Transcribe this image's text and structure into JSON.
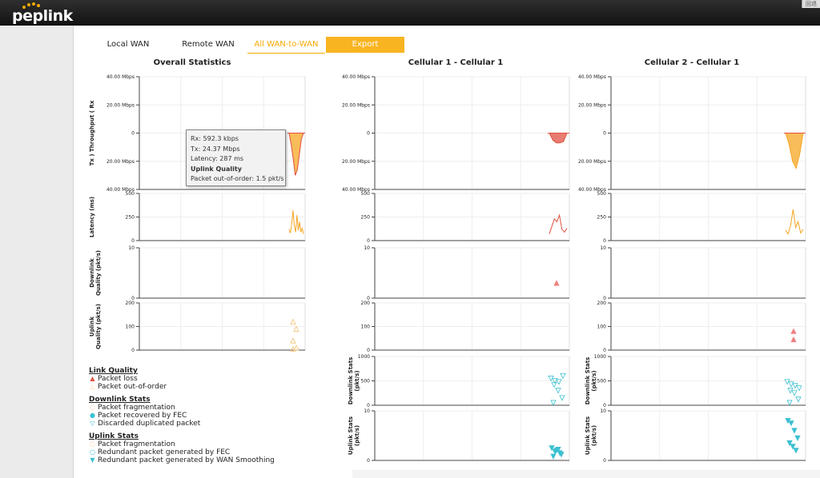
{
  "header": {
    "logo_text": "peplink",
    "corner_label": "回退"
  },
  "tabs": [
    {
      "label": "Local WAN",
      "active": false
    },
    {
      "label": "Remote WAN",
      "active": false
    },
    {
      "label": "All WAN-to-WAN",
      "active": true
    },
    {
      "label": "Export",
      "active": false
    }
  ],
  "tooltip": {
    "rx": "Rx: 592.3 kbps",
    "tx": "Tx: 24.37 Mbps",
    "latency": "Latency: 287 ms",
    "section": "Uplink Quality",
    "metric": "Packet out-of-order: 1.5 pkt/s"
  },
  "legend": {
    "link_quality": {
      "title": "Link Quality",
      "items": [
        "Packet loss",
        "Packet out-of-order"
      ]
    },
    "downlink_stats": {
      "title": "Downlink Stats",
      "items": [
        "Packet fragmentation",
        "Packet recovered by FEC",
        "Discarded duplicated packet"
      ]
    },
    "uplink_stats": {
      "title": "Uplink Stats",
      "items": [
        "Packet fragmentation",
        "Redundant packet generated by FEC",
        "Redundant packet generated by WAN Smoothing"
      ]
    }
  },
  "colors": {
    "accent": "#f5a900",
    "red": "#e05040",
    "orange": "#f5a623",
    "pink": "#f28080",
    "cyan": "#3cc0d0"
  },
  "chart_data": [
    {
      "type": "area",
      "title": "Overall Statistics",
      "panels": [
        {
          "ylabel": "Tx ) Throughput ( Rx",
          "ticks": [
            "40.00 Mbps",
            "20.00 Mbps",
            "0",
            "20.00 Mbps",
            "40.00 Mbps"
          ]
        },
        {
          "ylabel": "Latency (ms)",
          "ticks": [
            "500",
            "250",
            "0"
          ]
        },
        {
          "ylabel": "Downlink Quality (pkt/s)",
          "ticks": [
            "10",
            "0"
          ]
        },
        {
          "ylabel": "Uplink Quality (pkt/s)",
          "ticks": [
            "200",
            "100",
            "0"
          ]
        }
      ],
      "series": {
        "tx_mbps": [
          0,
          -8,
          -18,
          -30,
          -26,
          -15,
          -4,
          0
        ],
        "latency_ms": [
          120,
          80,
          180,
          320,
          160,
          90,
          270,
          110,
          200,
          90,
          130,
          70
        ],
        "uplink_out_of_order": [
          120,
          90,
          40,
          10,
          5
        ]
      }
    },
    {
      "type": "area",
      "title": "Cellular 1 - Cellular 1",
      "panels": [
        {
          "ylabel": "",
          "ticks": [
            "40.00 Mbps",
            "20.00 Mbps",
            "0",
            "20.00 Mbps",
            "40.00 Mbps"
          ]
        },
        {
          "ylabel": "",
          "ticks": [
            "500",
            "250",
            "0"
          ]
        },
        {
          "ylabel": "",
          "ticks": [
            "10",
            "0"
          ]
        },
        {
          "ylabel": "",
          "ticks": [
            "200",
            "100",
            "0"
          ]
        },
        {
          "ylabel": "Downlink Stats (pkt/s)",
          "ticks": [
            "1000",
            "500",
            "0"
          ]
        },
        {
          "ylabel": "Uplink Stats (pkt/s)",
          "ticks": [
            "10",
            "0"
          ]
        }
      ],
      "series": {
        "tx_mbps": [
          0,
          -5,
          -7,
          -7,
          -6,
          0
        ],
        "latency_ms": [
          70,
          150,
          230,
          200,
          270,
          120,
          90,
          130
        ],
        "downlink_packet_loss": [
          3
        ],
        "downlink_discarded_duplicated": [
          550,
          500,
          480,
          600,
          420,
          300,
          150,
          50
        ],
        "uplink_wan_smoothing": [
          2.5,
          1.8,
          2.2,
          1.2,
          0.8,
          2.0,
          1.5
        ]
      }
    },
    {
      "type": "area",
      "title": "Cellular 2 - Cellular 1",
      "panels": [
        {
          "ylabel": "",
          "ticks": [
            "40.00 Mbps",
            "20.00 Mbps",
            "0",
            "20.00 Mbps",
            "40.00 Mbps"
          ]
        },
        {
          "ylabel": "",
          "ticks": [
            "500",
            "250",
            "0"
          ]
        },
        {
          "ylabel": "",
          "ticks": [
            "10",
            "0"
          ]
        },
        {
          "ylabel": "",
          "ticks": [
            "200",
            "100",
            "0"
          ]
        },
        {
          "ylabel": "Downlink Stats (pkt/s)",
          "ticks": [
            "1000",
            "500",
            "0"
          ]
        },
        {
          "ylabel": "Uplink Stats (pkt/s)",
          "ticks": [
            "10",
            "0"
          ]
        }
      ],
      "series": {
        "tx_mbps": [
          0,
          -8,
          -20,
          -25,
          -15,
          0
        ],
        "latency_ms": [
          110,
          70,
          160,
          330,
          140,
          200,
          80,
          120
        ],
        "uplink_packet_loss": [
          80,
          45
        ],
        "downlink_discarded_duplicated": [
          480,
          430,
          400,
          350,
          300,
          250,
          120,
          50
        ],
        "uplink_wan_smoothing": [
          8,
          7.5,
          6,
          4.5,
          3.5,
          2.8,
          2
        ]
      }
    }
  ]
}
